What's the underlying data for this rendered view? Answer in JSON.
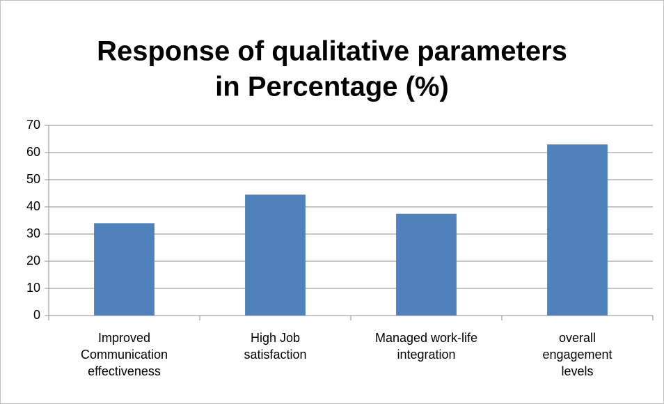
{
  "chart_data": {
    "type": "bar",
    "title": [
      "Response of qualitative parameters",
      "in Percentage (%)"
    ],
    "categories": [
      "Improved Communication effectiveness",
      "High Job satisfaction",
      "Managed work-life integration",
      "overall engagement levels"
    ],
    "values": [
      34,
      44.5,
      37.5,
      63
    ],
    "color": "#4f81bd",
    "ylim": [
      0,
      70
    ],
    "yticks": [
      0,
      10,
      20,
      30,
      40,
      50,
      60,
      70
    ],
    "grid": true
  }
}
